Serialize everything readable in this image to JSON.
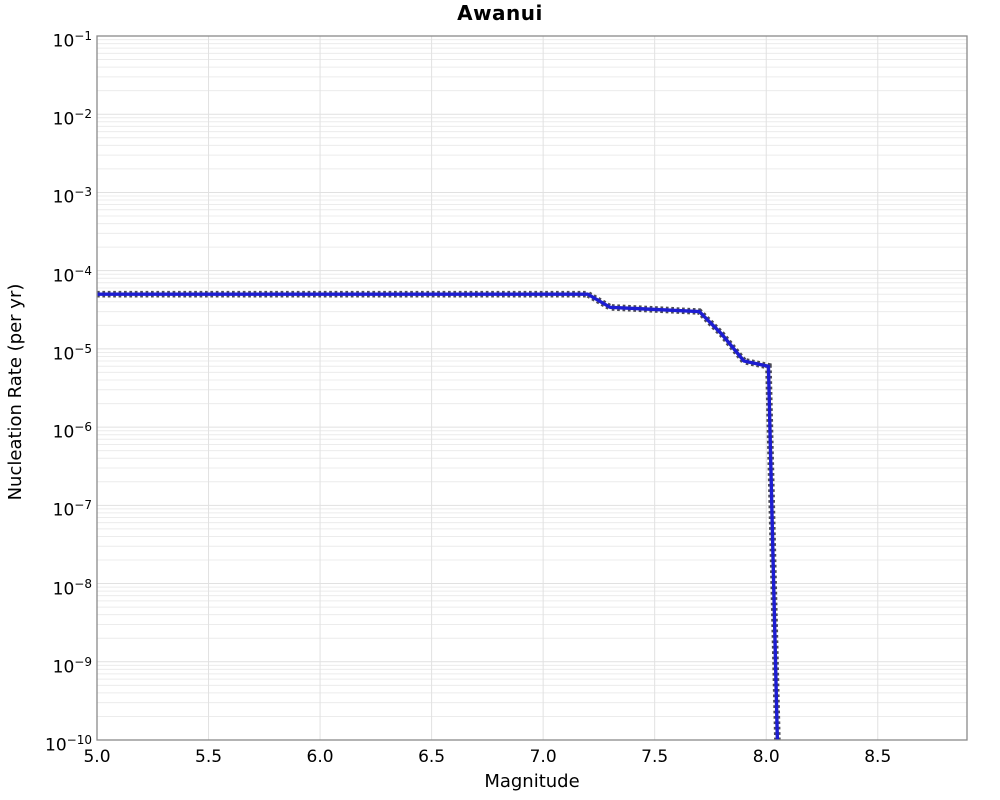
{
  "title": "Awanui",
  "axes": {
    "xlabel": "Magnitude",
    "ylabel": "Nucleation Rate (per yr)",
    "x_ticks": [
      "5.0",
      "5.5",
      "6.0",
      "6.5",
      "7.0",
      "7.5",
      "8.0",
      "8.5"
    ],
    "x_tick_values": [
      5.0,
      5.5,
      6.0,
      6.5,
      7.0,
      7.5,
      8.0,
      8.5
    ],
    "y_tick_exponents": [
      -1,
      -2,
      -3,
      -4,
      -5,
      -6,
      -7,
      -8,
      -9,
      -10
    ]
  },
  "chart_data": {
    "type": "line",
    "title": "Awanui",
    "xlabel": "Magnitude",
    "ylabel": "Nucleation Rate (per yr)",
    "x_scale": "linear",
    "y_scale": "log",
    "xlim": [
      5.0,
      8.9
    ],
    "ylim": [
      1e-10,
      0.1
    ],
    "grid": true,
    "legend": false,
    "series": [
      {
        "name": "nucleation-rate",
        "line_color": "#1d1dd2",
        "marker_color": "#4b4b55",
        "marker": "square",
        "points": [
          {
            "magnitude": 5.0,
            "rate": 5e-05
          },
          {
            "magnitude": 7.2,
            "rate": 5e-05
          },
          {
            "magnitude": 7.3,
            "rate": 3.4e-05
          },
          {
            "magnitude": 7.7,
            "rate": 3e-05
          },
          {
            "magnitude": 7.8,
            "rate": 1.55e-05
          },
          {
            "magnitude": 7.9,
            "rate": 7e-06
          },
          {
            "magnitude": 8.01,
            "rate": 6e-06
          },
          {
            "magnitude": 8.05,
            "rate": 1e-10
          }
        ]
      }
    ]
  },
  "colors": {
    "line": "#1d1dd2",
    "marker": "#4b4b55",
    "grid_minor": "#ececec",
    "grid_major": "#e1e1e1",
    "frame": "#8a8a8a",
    "background": "#ffffff"
  }
}
